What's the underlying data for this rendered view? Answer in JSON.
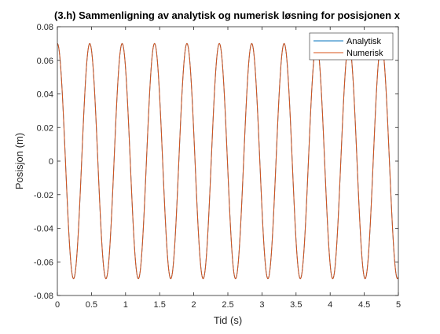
{
  "colors": {
    "analytical": "#0072BD",
    "numerical": "#D95319",
    "axis": "#262626",
    "background": "#ffffff"
  },
  "chart_data": {
    "type": "line",
    "title": "(3.h) Sammenligning av analytisk og numerisk løsning for posisjonen x",
    "xlabel": "Tid (s)",
    "ylabel": "Posisjon (m)",
    "xlim": [
      0,
      5
    ],
    "ylim": [
      -0.08,
      0.08
    ],
    "x_ticks": [
      0,
      0.5,
      1,
      1.5,
      2,
      2.5,
      3,
      3.5,
      4,
      4.5,
      5
    ],
    "x_tick_labels": [
      "0",
      "0.5",
      "1",
      "1.5",
      "2",
      "2.5",
      "3",
      "3.5",
      "4",
      "4.5",
      "5"
    ],
    "y_ticks": [
      -0.08,
      -0.06,
      -0.04,
      -0.02,
      0,
      0.02,
      0.04,
      0.06,
      0.08
    ],
    "y_tick_labels": [
      "-0.08",
      "-0.06",
      "-0.04",
      "-0.02",
      "0",
      "0.02",
      "0.04",
      "0.06",
      "0.08"
    ],
    "grid": false,
    "legend_position": "top-right",
    "series": [
      {
        "name": "Analytisk",
        "function": "x(t) = A·cos(2π t / T)",
        "amplitude_m": 0.07,
        "period_s": 0.475,
        "x_range": [
          0,
          5
        ],
        "peaks_x": [
          0,
          0.475,
          0.95,
          1.425,
          1.9,
          2.375,
          2.85,
          3.325,
          3.8,
          4.275,
          4.75
        ],
        "peaks_y": 0.07,
        "troughs_x": [
          0.2375,
          0.7125,
          1.1875,
          1.6625,
          2.1375,
          2.6125,
          3.0875,
          3.5625,
          4.0375,
          4.5125,
          4.9875
        ],
        "troughs_y": -0.07
      },
      {
        "name": "Numerisk",
        "function": "x(t) = A·cos(2π t / T)",
        "amplitude_m": 0.07,
        "period_s": 0.475,
        "x_range": [
          0,
          5
        ],
        "peaks_x": [
          0,
          0.475,
          0.95,
          1.425,
          1.9,
          2.375,
          2.85,
          3.325,
          3.8,
          4.275,
          4.75
        ],
        "peaks_y": 0.07,
        "troughs_x": [
          0.2375,
          0.7125,
          1.1875,
          1.6625,
          2.1375,
          2.6125,
          3.0875,
          3.5625,
          4.0375,
          4.5125,
          4.9875
        ],
        "troughs_y": -0.07
      }
    ]
  }
}
